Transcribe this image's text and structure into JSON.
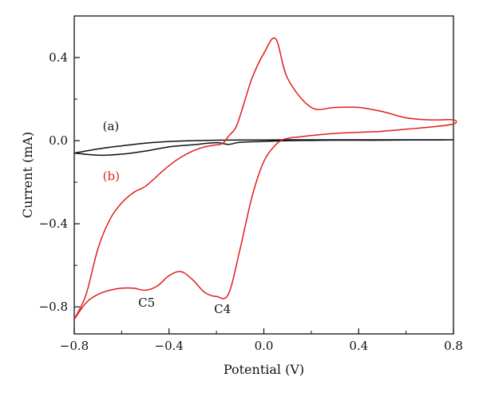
{
  "chart_data": {
    "type": "line",
    "title": "",
    "xlabel": "Potential (V)",
    "ylabel": "Current (mA)",
    "xlim": [
      -0.8,
      0.8
    ],
    "ylim": [
      -0.93,
      0.6
    ],
    "xticks": [
      -0.8,
      -0.4,
      0.0,
      0.4,
      0.8
    ],
    "xtick_labels": [
      "−0.8",
      "−0.4",
      "0.0",
      "0.4",
      "0.8"
    ],
    "yticks": [
      -0.8,
      -0.4,
      0.0,
      0.4
    ],
    "ytick_labels": [
      "−0.8",
      "−0.4",
      "0.0",
      "0.4"
    ],
    "grid": false,
    "legend": "none",
    "colors": {
      "a": "#111111",
      "b": "#e01e1e",
      "axis": "#111111"
    },
    "series": [
      {
        "name": "(a)",
        "label": "(a)",
        "color": "#111111",
        "x": [
          -0.8,
          -0.7,
          -0.6,
          -0.5,
          -0.4,
          -0.3,
          -0.2,
          -0.1,
          0.0,
          0.1,
          0.2,
          0.3,
          0.4,
          0.5,
          0.6,
          0.7,
          0.8,
          0.7,
          0.6,
          0.5,
          0.4,
          0.3,
          0.2,
          0.1,
          0.0,
          -0.1,
          -0.15,
          -0.2,
          -0.3,
          -0.4,
          -0.5,
          -0.6,
          -0.7,
          -0.8
        ],
        "y": [
          -0.06,
          -0.04,
          -0.025,
          -0.012,
          -0.004,
          0.0,
          0.002,
          0.003,
          0.003,
          0.004,
          0.004,
          0.004,
          0.004,
          0.004,
          0.004,
          0.004,
          0.004,
          0.003,
          0.003,
          0.002,
          0.002,
          0.002,
          0.001,
          0.0,
          -0.004,
          -0.008,
          -0.018,
          -0.01,
          -0.02,
          -0.03,
          -0.05,
          -0.065,
          -0.07,
          -0.06
        ]
      },
      {
        "name": "(b)",
        "label": "(b)",
        "color": "#e01e1e",
        "x": [
          -0.8,
          -0.75,
          -0.7,
          -0.65,
          -0.6,
          -0.55,
          -0.5,
          -0.45,
          -0.4,
          -0.35,
          -0.3,
          -0.25,
          -0.2,
          -0.15,
          -0.1,
          -0.05,
          0.0,
          0.05,
          0.08,
          0.1,
          0.12,
          0.15,
          0.2,
          0.25,
          0.3,
          0.4,
          0.5,
          0.6,
          0.7,
          0.8,
          0.8,
          0.7,
          0.6,
          0.5,
          0.4,
          0.3,
          0.2,
          0.1,
          0.05,
          0.0,
          -0.05,
          -0.1,
          -0.12,
          -0.15,
          -0.17,
          -0.19,
          -0.2,
          -0.25,
          -0.3,
          -0.35,
          -0.4,
          -0.45,
          -0.5,
          -0.55,
          -0.6,
          -0.65,
          -0.7,
          -0.75,
          -0.8
        ],
        "y": [
          -0.86,
          -0.78,
          -0.74,
          -0.72,
          -0.71,
          -0.71,
          -0.72,
          -0.7,
          -0.65,
          -0.63,
          -0.67,
          -0.73,
          -0.75,
          -0.74,
          -0.52,
          -0.27,
          -0.1,
          -0.02,
          0.005,
          0.01,
          0.015,
          0.018,
          0.025,
          0.03,
          0.035,
          0.04,
          0.045,
          0.055,
          0.065,
          0.08,
          0.1,
          0.1,
          0.11,
          0.14,
          0.16,
          0.16,
          0.16,
          0.3,
          0.49,
          0.42,
          0.3,
          0.12,
          0.06,
          0.02,
          -0.01,
          -0.02,
          -0.02,
          -0.03,
          -0.05,
          -0.08,
          -0.12,
          -0.17,
          -0.22,
          -0.25,
          -0.3,
          -0.38,
          -0.52,
          -0.74,
          -0.86
        ]
      }
    ],
    "annotations": [
      {
        "text": "(a)",
        "x": -0.68,
        "y": 0.05,
        "color": "#111111"
      },
      {
        "text": "(b)",
        "x": -0.68,
        "y": -0.19,
        "color": "#e01e1e"
      },
      {
        "text": "C5",
        "x": -0.53,
        "y": -0.8,
        "color": "#111111"
      },
      {
        "text": "C4",
        "x": -0.21,
        "y": -0.83,
        "color": "#111111"
      }
    ]
  }
}
